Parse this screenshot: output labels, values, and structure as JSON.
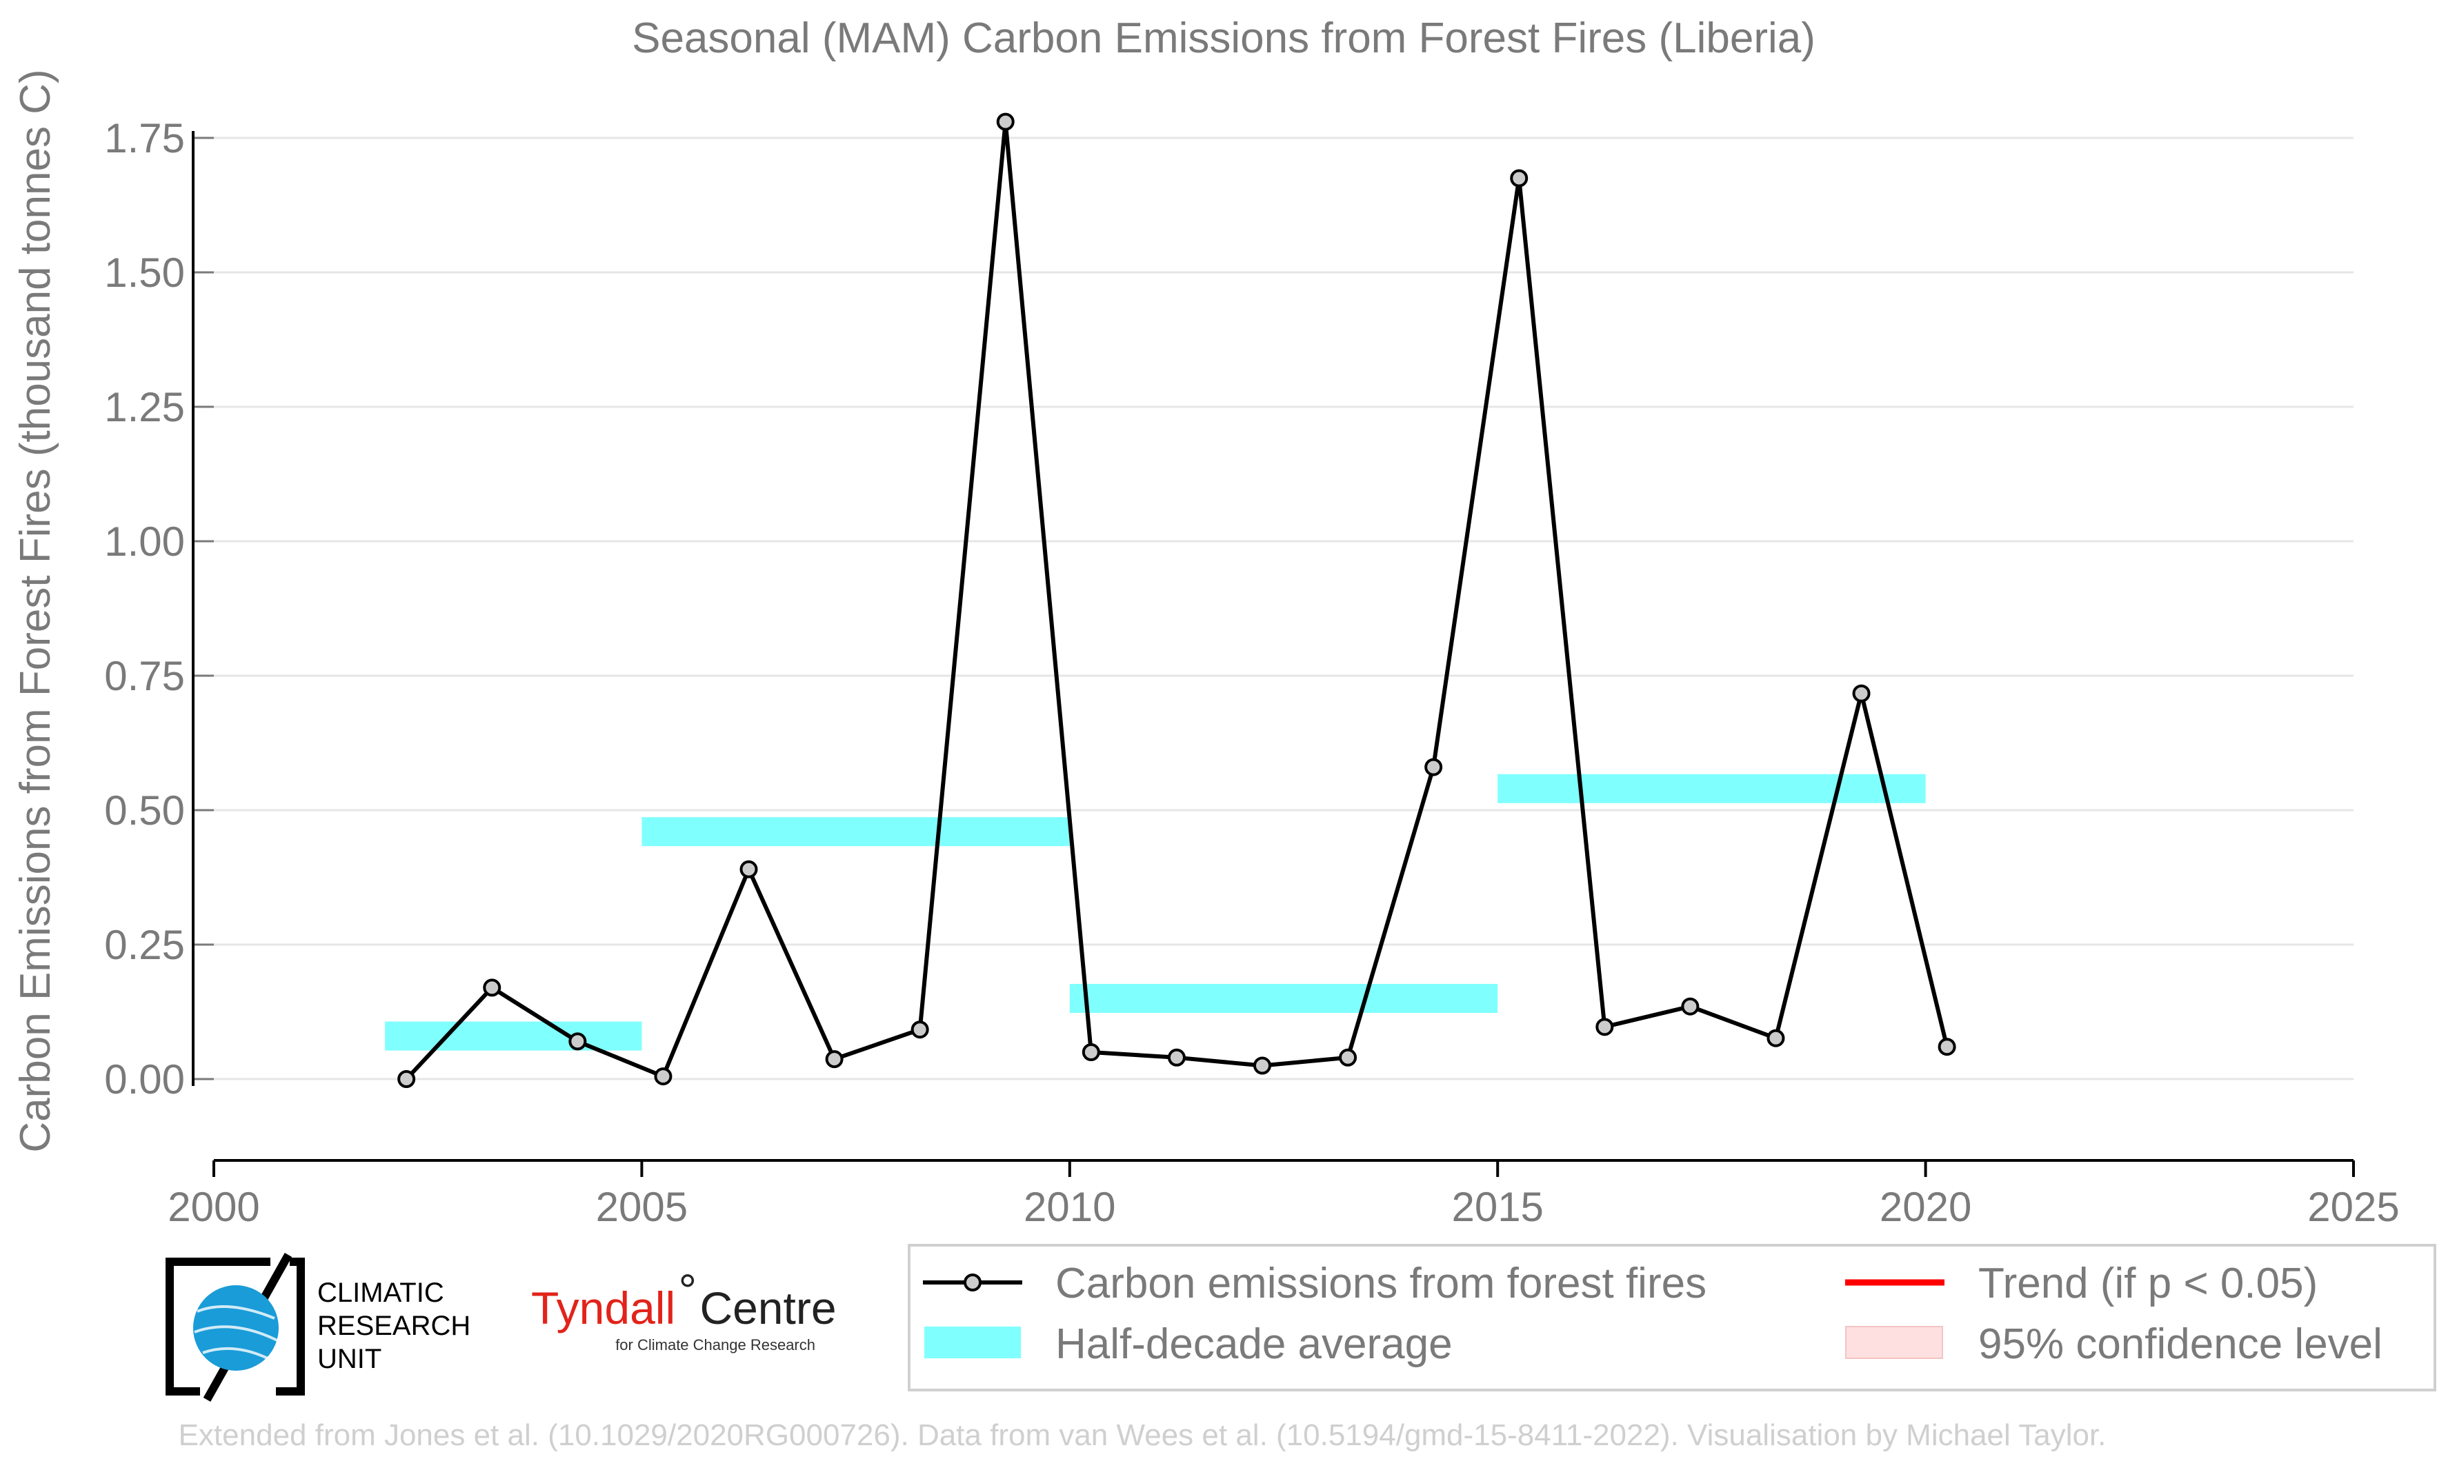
{
  "chart_data": {
    "type": "line",
    "title": "Seasonal (MAM) Carbon Emissions from Forest Fires (Liberia)",
    "xlabel": "",
    "ylabel": "Carbon Emissions from Forest Fires (thousand tonnes C)",
    "xlim": [
      2000,
      2025
    ],
    "ylim": [
      -0.14,
      1.8
    ],
    "x_ticks": [
      "2000",
      "2005",
      "2010",
      "2015",
      "2020",
      "2025"
    ],
    "y_ticks": [
      "0.00",
      "0.25",
      "0.50",
      "0.75",
      "1.00",
      "1.25",
      "1.50",
      "1.75"
    ],
    "grid": "horizontal",
    "series": [
      {
        "name": "Carbon emissions from forest fires",
        "color": "#000000",
        "x": [
          2002.25,
          2003.25,
          2004.25,
          2005.25,
          2006.25,
          2007.25,
          2008.25,
          2009.25,
          2010.25,
          2011.25,
          2012.25,
          2013.25,
          2014.25,
          2015.25,
          2016.25,
          2017.25,
          2018.25,
          2019.25,
          2020.25
        ],
        "y": [
          0.0,
          0.17,
          0.07,
          0.005,
          0.39,
          0.037,
          0.092,
          1.78,
          0.05,
          0.04,
          0.025,
          0.04,
          0.58,
          1.675,
          0.097,
          0.135,
          0.076,
          0.717,
          0.06
        ]
      }
    ],
    "half_decade_average": {
      "name": "Half-decade average",
      "color": "#80ffff",
      "segments": [
        {
          "x0": 2002,
          "x1": 2005,
          "y": 0.08
        },
        {
          "x0": 2005,
          "x1": 2010,
          "y": 0.46
        },
        {
          "x0": 2010,
          "x1": 2015,
          "y": 0.15
        },
        {
          "x0": 2015,
          "x1": 2020,
          "y": 0.54
        }
      ]
    },
    "legend": {
      "position": "bottom-right",
      "items": [
        {
          "label": "Carbon emissions from forest fires",
          "kind": "line-marker",
          "color": "#000000"
        },
        {
          "label": "Trend (if p < 0.05)",
          "kind": "line",
          "color": "#ff0000"
        },
        {
          "label": "Half-decade average",
          "kind": "band",
          "color": "#80ffff"
        },
        {
          "label": "95% confidence level",
          "kind": "band",
          "color": "#ffe0e0"
        }
      ]
    }
  },
  "logos": {
    "cru_lines": [
      "CLIMATIC",
      "RESEARCH",
      "UNIT"
    ],
    "tyndall_name": "Tyndall",
    "tyndall_degree": "°",
    "tyndall_centre": "Centre",
    "tyndall_sub": "for Climate Change Research"
  },
  "footer": "Extended from Jones et al. (10.1029/2020RG000726). Data from van Wees et al. (10.5194/gmd-15-8411-2022). Visualisation by Michael Taylor."
}
